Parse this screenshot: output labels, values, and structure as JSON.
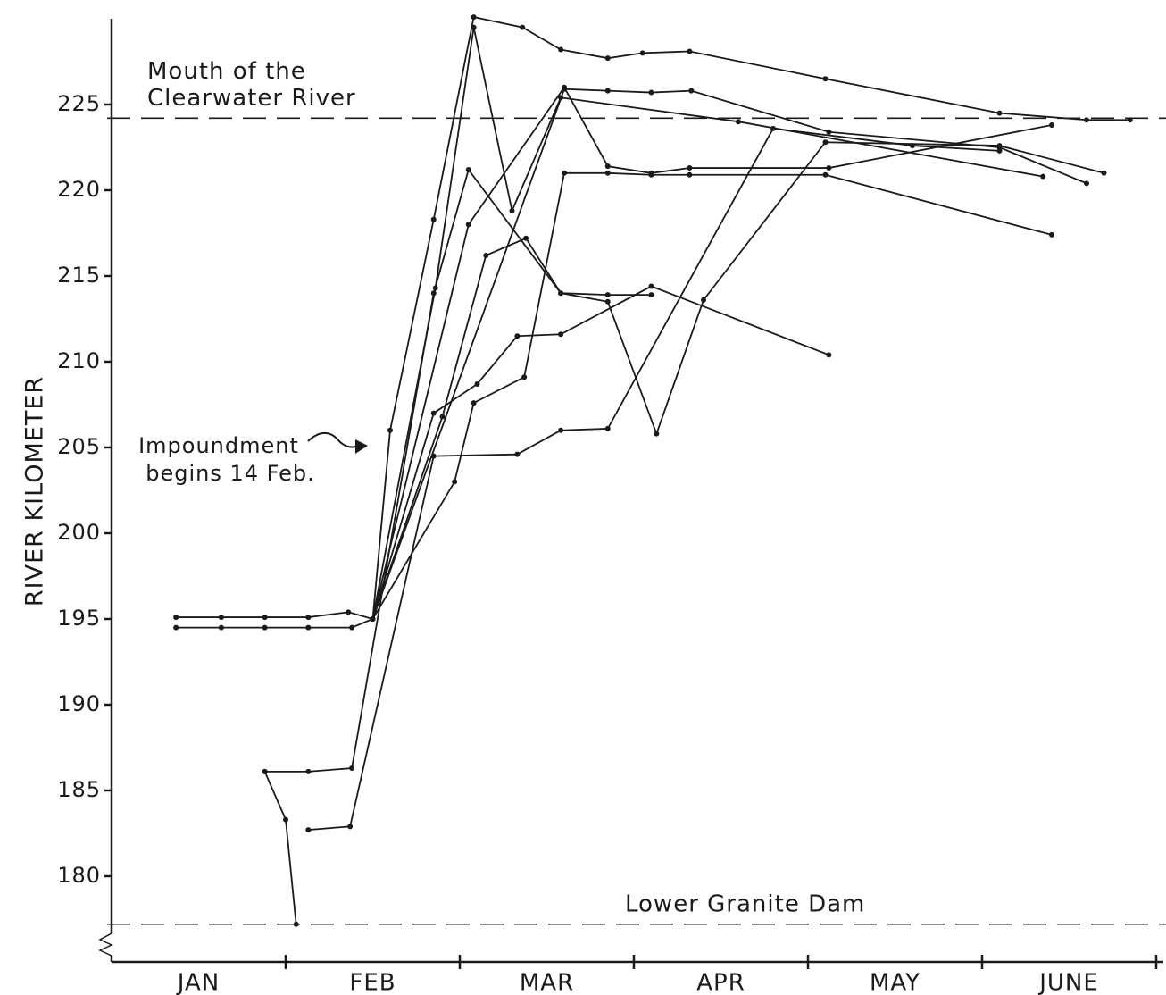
{
  "chart_data": {
    "type": "line",
    "y_label": "RIVER KILOMETER",
    "categories": [
      "JAN",
      "FEB",
      "MAR",
      "APR",
      "MAY",
      "JUNE"
    ],
    "xlim": [
      0,
      6
    ],
    "ylim": [
      175,
      230
    ],
    "yticks": [
      180,
      185,
      190,
      195,
      200,
      205,
      210,
      215,
      220,
      225
    ],
    "reference_lines": [
      {
        "value": 224.2,
        "label": [
          "Mouth of the",
          "Clearwater River"
        ]
      },
      {
        "value": 177.2,
        "label": [
          "Lower Granite Dam"
        ]
      }
    ],
    "annotation": [
      "Impoundment",
      "begins 14 Feb."
    ],
    "series": [
      {
        "color": "#1a1a1a",
        "x": [
          0.37,
          0.63,
          0.88,
          1.13,
          1.36,
          1.5,
          1.6,
          1.85,
          2.08,
          2.36,
          2.58,
          2.85,
          3.05,
          3.32,
          4.1,
          5.1,
          5.6,
          5.85
        ],
        "values": [
          195.1,
          195.1,
          195.1,
          195.1,
          195.4,
          195,
          206,
          218.3,
          230.1,
          229.5,
          228.2,
          227.7,
          228,
          228.1,
          226.5,
          224.5,
          224.1,
          224.1
        ]
      },
      {
        "color": "#1a1a1a",
        "x": [
          0.37,
          0.63,
          0.88,
          1.13,
          1.38,
          1.5,
          1.86,
          2.08,
          2.3,
          2.58,
          3.6,
          5.35
        ],
        "values": [
          194.5,
          194.5,
          194.5,
          194.5,
          194.5,
          195,
          214.3,
          229.5,
          218.8,
          225.4,
          224,
          220.8
        ]
      },
      {
        "color": "#1a1a1a",
        "x": [
          0.88,
          1.13,
          1.38,
          1.85,
          2.05,
          2.58,
          2.85,
          3.1
        ],
        "values": [
          186.1,
          186.1,
          186.3,
          214,
          221.2,
          214,
          213.9,
          213.9
        ]
      },
      {
        "color": "#1a1a1a",
        "x": [
          0.88,
          1.0,
          1.06
        ],
        "values": [
          186.1,
          183.3,
          177.2
        ]
      },
      {
        "color": "#1a1a1a",
        "x": [
          1.13,
          1.37,
          1.85,
          2.33,
          2.58,
          2.85,
          3.8,
          4.6,
          5.1
        ],
        "values": [
          182.7,
          182.9,
          204.5,
          204.6,
          206,
          206.1,
          223.6,
          222.6,
          222.3
        ]
      },
      {
        "color": "#1a1a1a",
        "x": [
          1.5,
          1.85,
          2.1,
          2.33,
          2.58,
          3.1,
          4.12
        ],
        "values": [
          195,
          207,
          208.7,
          211.5,
          211.6,
          214.4,
          210.4
        ]
      },
      {
        "color": "#1a1a1a",
        "x": [
          1.5,
          1.9,
          2.15,
          2.38,
          2.58,
          2.85,
          3.13,
          3.4,
          4.1,
          5.1,
          5.7
        ],
        "values": [
          195,
          206.8,
          216.2,
          217.2,
          214,
          213.5,
          205.8,
          213.6,
          222.8,
          222.6,
          221
        ]
      },
      {
        "color": "#1a1a1a",
        "x": [
          1.5,
          2.05,
          2.6,
          2.85,
          3.1,
          3.32,
          4.12,
          5.4
        ],
        "values": [
          195,
          218,
          226,
          221.4,
          221,
          221.3,
          221.3,
          223.8
        ]
      },
      {
        "color": "#1a1a1a",
        "x": [
          1.5,
          1.97,
          2.08,
          2.37,
          2.6,
          2.85,
          3.1,
          3.32,
          4.1,
          5.4
        ],
        "values": [
          195,
          203,
          207.6,
          209.1,
          221,
          221,
          220.9,
          220.9,
          220.9,
          217.4
        ]
      },
      {
        "color": "#1a1a1a",
        "x": [
          1.5,
          2.6,
          2.85,
          3.1,
          3.33,
          4.12,
          5.1,
          5.6
        ],
        "values": [
          195,
          225.9,
          225.8,
          225.7,
          225.8,
          223.4,
          222.5,
          220.4
        ]
      }
    ]
  }
}
